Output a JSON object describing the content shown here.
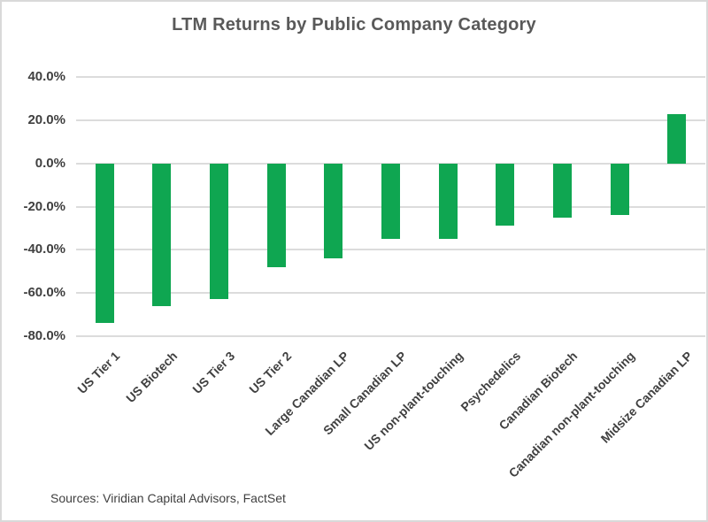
{
  "source_note": "Sources: Viridian Capital Advisors, FactSet",
  "colors": {
    "bar": "#0fa651",
    "title_text": "#595959",
    "axis_text": "#404040",
    "gridline": "#dcdcdc",
    "frame_border": "#d9d9d9",
    "background": "#ffffff"
  },
  "chart_data": {
    "type": "bar",
    "title": "LTM Returns by Public Company Category",
    "categories": [
      "US Tier 1",
      "US Biotech",
      "US Tier 3",
      "US Tier 2",
      "Large Canadian LP",
      "Small Canadian LP",
      "US non-plant-touching",
      "Psychedelics",
      "Canadian Biotech",
      "Canadian non-plant-touching",
      "Midsize Canadian LP"
    ],
    "values": [
      -74,
      -66,
      -63,
      -48,
      -44,
      -35,
      -35,
      -29,
      -25,
      -24,
      23
    ],
    "unit": "percent",
    "xlabel": "",
    "ylabel": "",
    "ylim": [
      -80,
      40
    ],
    "ytick_step": 20,
    "ytick_labels": [
      "40.0%",
      "20.0%",
      "0.0%",
      "-20.0%",
      "-40.0%",
      "-60.0%",
      "-80.0%"
    ],
    "grid": "horizontal",
    "legend": "none",
    "bar_color": "#0fa651"
  }
}
